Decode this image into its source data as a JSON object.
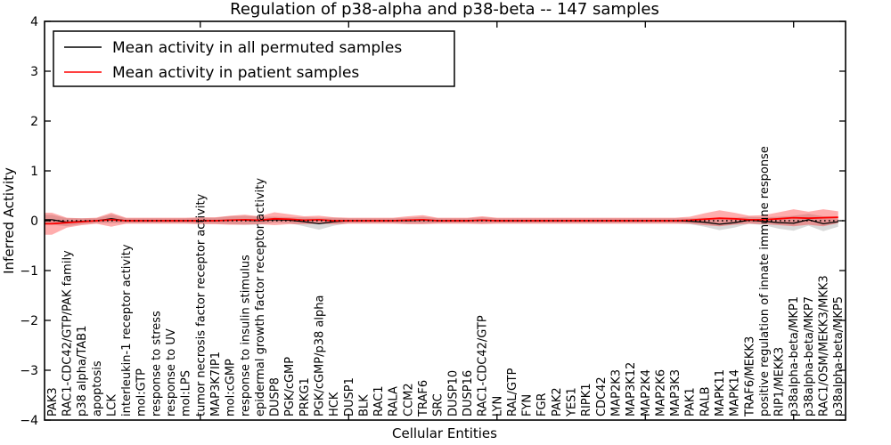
{
  "chart_data": {
    "type": "line",
    "title": "Regulation of p38-alpha and p38-beta -- 147 samples",
    "xlabel": "Cellular Entities",
    "ylabel": "Inferred Activity",
    "ylim": [
      -4,
      4
    ],
    "yticks": [
      4,
      3,
      2,
      1,
      0,
      -1,
      -2,
      -3,
      -4
    ],
    "xtick_positions": [
      10,
      20,
      30,
      40,
      50
    ],
    "grid": false,
    "legend_position": "upper left",
    "zero_line": {
      "style": "dotted",
      "color": "#000000",
      "y": 0
    },
    "categories": [
      "PAK3",
      "RAC1-CDC42/GTP/PAK family",
      "p38 alpha/TAB1",
      "apoptosis",
      "LCK",
      "interleukin-1 receptor activity",
      "mol:GTP",
      "response to stress",
      "response to UV",
      "mol:LPS",
      "tumor necrosis factor receptor activity",
      "MAP3K7IP1",
      "mol:cGMP",
      "response to insulin stimulus",
      "epidermal growth factor receptor activity",
      "DUSP8",
      "PGK/cGMP",
      "PRKG1",
      "PGK/cGMP/p38 alpha",
      "HCK",
      "DUSP1",
      "BLK",
      "RAC1",
      "RALA",
      "CCM2",
      "TRAF6",
      "SRC",
      "DUSP10",
      "DUSP16",
      "RAC1-CDC42/GTP",
      "LYN",
      "RAL/GTP",
      "FYN",
      "FGR",
      "PAK2",
      "YES1",
      "RIPK1",
      "CDC42",
      "MAP2K3",
      "MAP3K12",
      "MAP2K4",
      "MAP2K6",
      "MAP3K3",
      "PAK1",
      "RALB",
      "MAPK11",
      "MAPK14",
      "TRAF6/MEKK3",
      "positive regulation of innate immune response",
      "RIP1/MEKK3",
      "p38alpha-beta/MKP1",
      "p38alpha-beta/MKP7",
      "RAC1/OSM/MEKK3/MKK3",
      "p38alpha-beta/MKP5"
    ],
    "series": [
      {
        "name": "Mean activity in all permuted samples",
        "color": "#000000",
        "band_color": "rgba(0,0,0,0.15)",
        "mean": [
          0.02,
          -0.03,
          -0.01,
          0,
          0.04,
          0,
          0,
          0,
          0,
          0,
          0,
          0,
          0.01,
          0.01,
          0,
          0.02,
          0.01,
          -0.02,
          -0.06,
          -0.02,
          0,
          0,
          0,
          0,
          0,
          0.01,
          0,
          0,
          0,
          0.01,
          0,
          0,
          0,
          0,
          0,
          0,
          0,
          0,
          0,
          0,
          0,
          0,
          0,
          -0.01,
          -0.03,
          -0.07,
          -0.04,
          0.01,
          -0.01,
          -0.04,
          -0.05,
          0.02,
          -0.06,
          -0.02
        ],
        "std": [
          0.1,
          0.08,
          0.06,
          0.05,
          0.09,
          0.05,
          0.05,
          0.05,
          0.05,
          0.05,
          0.06,
          0.06,
          0.08,
          0.09,
          0.08,
          0.06,
          0.06,
          0.09,
          0.12,
          0.08,
          0.05,
          0.05,
          0.05,
          0.05,
          0.06,
          0.07,
          0.05,
          0.05,
          0.05,
          0.06,
          0.05,
          0.05,
          0.05,
          0.05,
          0.05,
          0.05,
          0.05,
          0.05,
          0.05,
          0.05,
          0.05,
          0.05,
          0.05,
          0.06,
          0.09,
          0.12,
          0.1,
          0.07,
          0.08,
          0.12,
          0.15,
          0.12,
          0.15,
          0.1
        ]
      },
      {
        "name": "Mean activity in patient samples",
        "color": "#ff0000",
        "band_color": "rgba(255,0,0,0.32)",
        "mean": [
          -0.06,
          -0.04,
          -0.02,
          0,
          0.02,
          0,
          0,
          0,
          0,
          0,
          0,
          0,
          0.01,
          0.02,
          0.01,
          0.04,
          0.03,
          0.01,
          0.02,
          0,
          0,
          0,
          0,
          0,
          0.01,
          0.02,
          0,
          0,
          0,
          0.01,
          0,
          0,
          0,
          0,
          0,
          0,
          0,
          0,
          0,
          0,
          0,
          0,
          0,
          0.01,
          0.03,
          0.05,
          0.04,
          0.02,
          0.02,
          0.04,
          0.06,
          0.05,
          0.06,
          0.07
        ],
        "std": [
          0.22,
          0.1,
          0.07,
          0.06,
          0.14,
          0.06,
          0.06,
          0.06,
          0.06,
          0.06,
          0.07,
          0.07,
          0.09,
          0.1,
          0.08,
          0.13,
          0.1,
          0.08,
          0.08,
          0.07,
          0.06,
          0.06,
          0.06,
          0.06,
          0.08,
          0.09,
          0.06,
          0.06,
          0.06,
          0.08,
          0.06,
          0.06,
          0.06,
          0.06,
          0.06,
          0.06,
          0.06,
          0.06,
          0.06,
          0.06,
          0.06,
          0.06,
          0.06,
          0.07,
          0.12,
          0.16,
          0.12,
          0.08,
          0.09,
          0.13,
          0.17,
          0.13,
          0.17,
          0.12
        ]
      }
    ]
  }
}
